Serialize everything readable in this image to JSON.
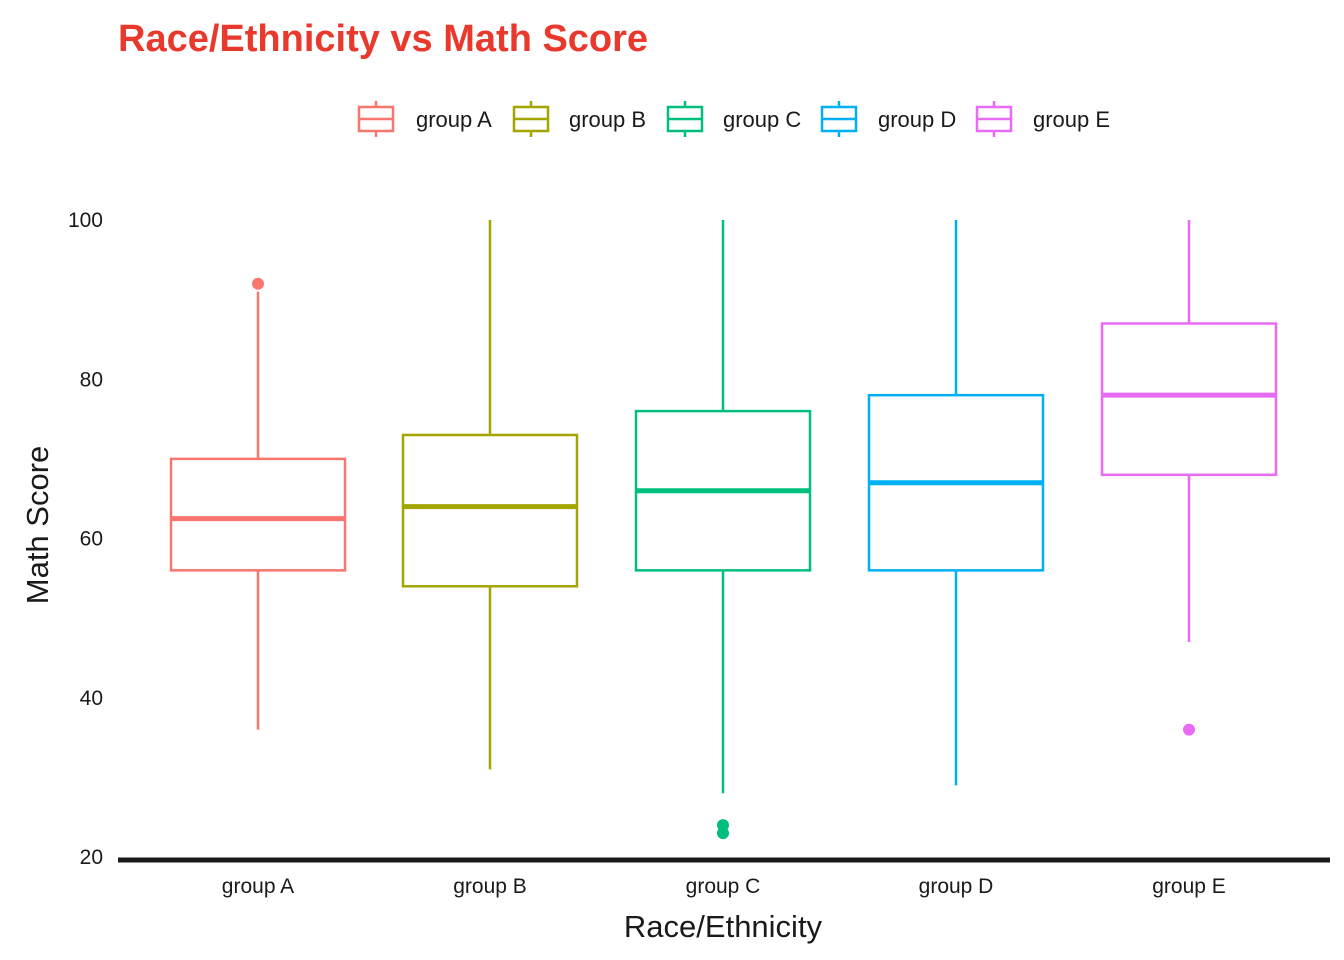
{
  "chart_data": {
    "type": "box",
    "title": "Race/Ethnicity vs Math Score",
    "xlabel": "Race/Ethnicity",
    "ylabel": "Math Score",
    "ylim": [
      20,
      100
    ],
    "yticks": [
      20,
      40,
      60,
      80,
      100
    ],
    "categories": [
      "group A",
      "group B",
      "group C",
      "group D",
      "group E"
    ],
    "legend_position": "top",
    "grid": false,
    "series": [
      {
        "name": "group A",
        "color": "#f8766d",
        "min": 36,
        "q1": 56,
        "median": 62.5,
        "q3": 70,
        "max": 91,
        "outliers": [
          92
        ]
      },
      {
        "name": "group B",
        "color": "#a3a500",
        "min": 31,
        "q1": 54,
        "median": 64,
        "q3": 73,
        "max": 100,
        "outliers": []
      },
      {
        "name": "group C",
        "color": "#00bf7d",
        "min": 28,
        "q1": 56,
        "median": 66,
        "q3": 76,
        "max": 100,
        "outliers": [
          24,
          23
        ]
      },
      {
        "name": "group D",
        "color": "#00b0f6",
        "min": 29,
        "q1": 56,
        "median": 67,
        "q3": 78,
        "max": 100,
        "outliers": []
      },
      {
        "name": "group E",
        "color": "#e76bf3",
        "min": 47,
        "q1": 68,
        "median": 78,
        "q3": 87,
        "max": 100,
        "outliers": [
          36
        ]
      }
    ]
  }
}
